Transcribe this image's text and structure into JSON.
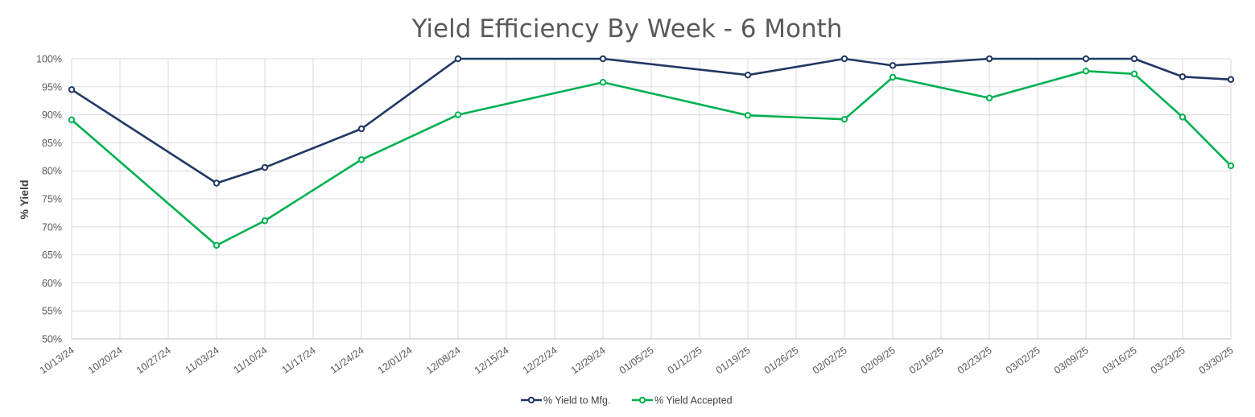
{
  "chart_data": {
    "type": "line",
    "title": "Yield Efficiency By Week - 6 Month",
    "xlabel": "",
    "ylabel": "% Yield",
    "categories": [
      "10/13/24",
      "10/20/24",
      "10/27/24",
      "11/03/24",
      "11/10/24",
      "11/17/24",
      "11/24/24",
      "12/01/24",
      "12/08/24",
      "12/15/24",
      "12/22/24",
      "12/29/24",
      "01/05/25",
      "01/12/25",
      "01/19/25",
      "01/26/25",
      "02/02/25",
      "02/09/25",
      "02/16/25",
      "02/23/25",
      "03/02/25",
      "03/09/25",
      "03/16/25",
      "03/23/25",
      "03/30/25"
    ],
    "y_ticks": [
      "50%",
      "55%",
      "60%",
      "65%",
      "70%",
      "75%",
      "80%",
      "85%",
      "90%",
      "95%",
      "100%"
    ],
    "ylim": [
      50,
      100
    ],
    "grid": true,
    "legend_position": "bottom",
    "series": [
      {
        "name": "% Yield to Mfg.",
        "color": "#203864",
        "values": [
          94.5,
          null,
          null,
          77.8,
          80.6,
          null,
          87.5,
          null,
          100,
          null,
          null,
          100,
          null,
          null,
          97.1,
          null,
          100,
          98.8,
          null,
          100,
          null,
          100,
          100,
          96.8,
          96.3
        ]
      },
      {
        "name": "% Yield Accepted",
        "color": "#00b050",
        "values": [
          89.1,
          null,
          null,
          66.7,
          71.1,
          null,
          82.0,
          null,
          90.0,
          null,
          null,
          95.8,
          null,
          null,
          89.9,
          null,
          89.2,
          96.7,
          null,
          93.0,
          null,
          97.8,
          97.3,
          89.6,
          80.9
        ]
      }
    ]
  }
}
